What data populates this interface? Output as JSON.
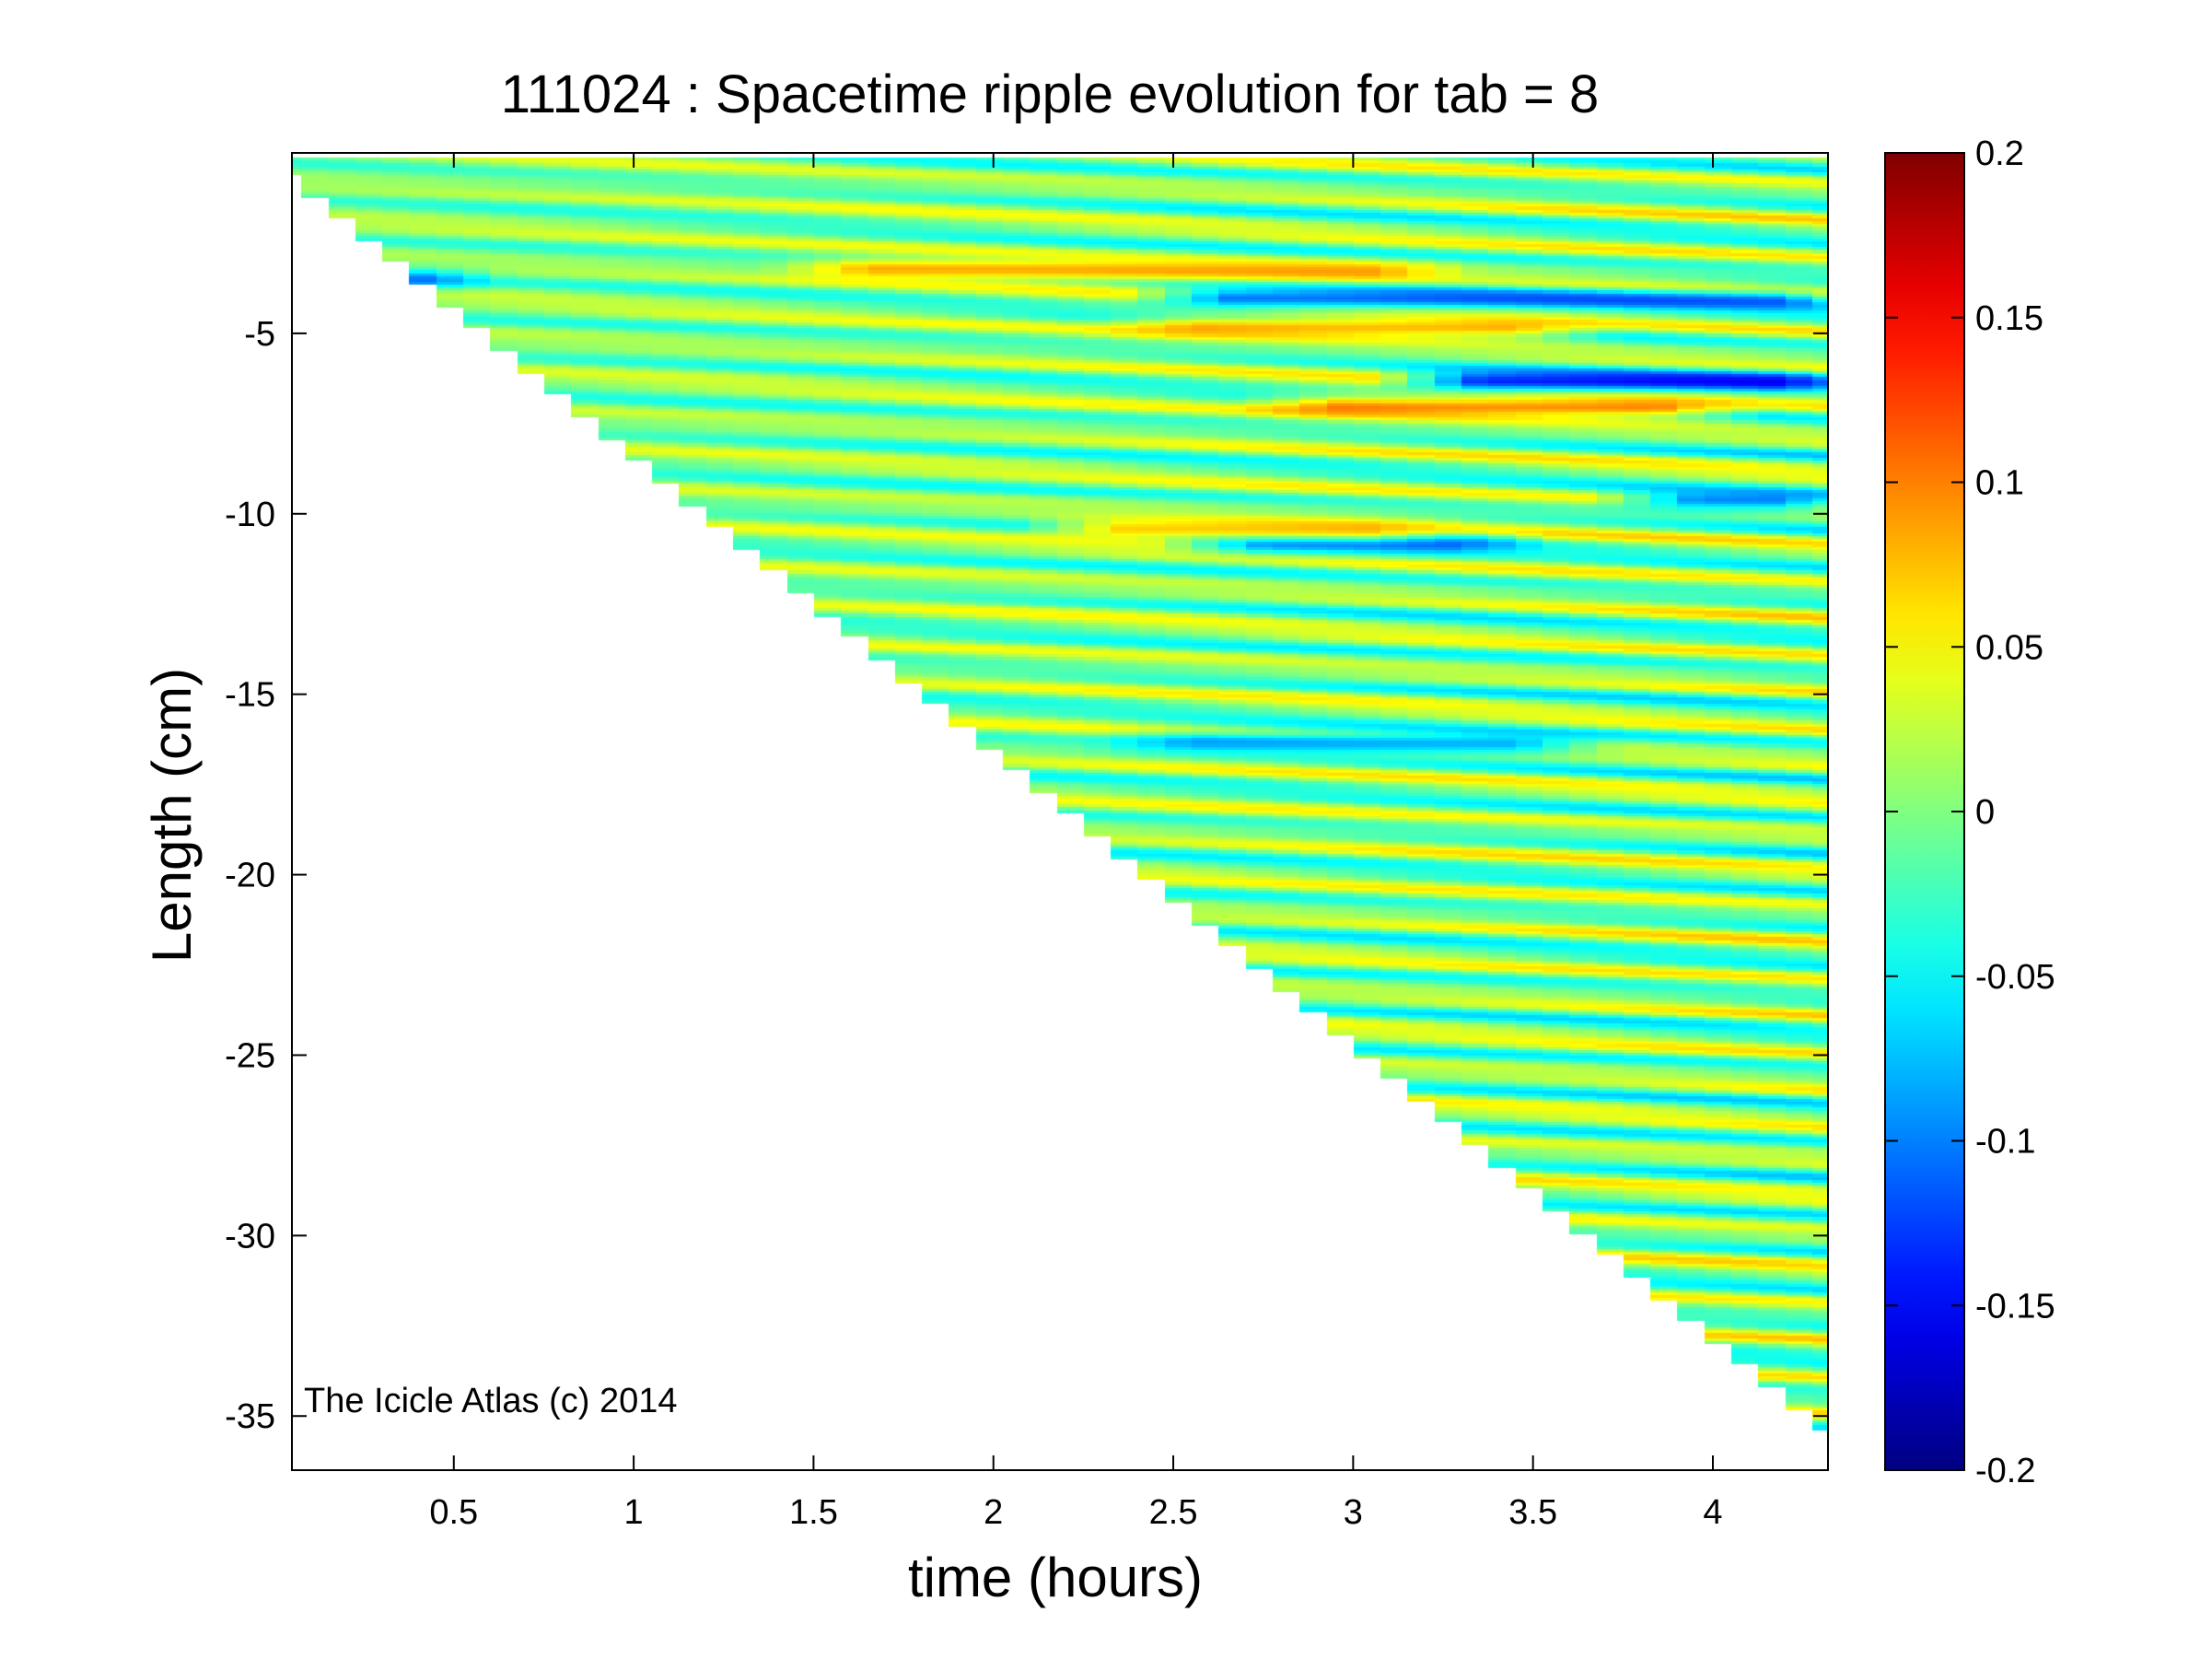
{
  "chart_data": {
    "type": "heatmap",
    "title": "111024 : Spacetime ripple evolution for tab = 8",
    "xlabel": "time (hours)",
    "ylabel": "Length (cm)",
    "xlim": [
      0.05,
      4.32
    ],
    "ylim": [
      -36.5,
      0.0
    ],
    "xticks": [
      0.5,
      1,
      1.5,
      2,
      2.5,
      3,
      3.5,
      4
    ],
    "xtick_labels": [
      "0.5",
      "1",
      "1.5",
      "2",
      "2.5",
      "3",
      "3.5",
      "4"
    ],
    "yticks": [
      -5,
      -10,
      -15,
      -20,
      -25,
      -30,
      -35
    ],
    "ytick_labels": [
      "-5",
      "-10",
      "-15",
      "-20",
      "-25",
      "-30",
      "-35"
    ],
    "colorbar": {
      "colormap": "jet",
      "clim": [
        -0.2,
        0.2
      ],
      "ticks": [
        0.2,
        0.15,
        0.1,
        0.05,
        0,
        -0.05,
        -0.1,
        -0.15,
        -0.2
      ],
      "tick_labels": [
        "0.2",
        "0.15",
        "0.1",
        "0.05",
        "0",
        "-0.05",
        "-0.1",
        "-0.15",
        "-0.2"
      ]
    },
    "data_region": {
      "description_boundary": "icicle tip length grows linearly with time",
      "tip_start": {
        "time": 0.05,
        "length": -1.0
      },
      "tip_end": {
        "time": 4.32,
        "length": -35.8
      }
    },
    "ripple_pattern": {
      "wavelength_cm": 1.0,
      "drift_cm_per_hour": 0.5,
      "typical_amplitude": 0.045,
      "strong_features": [
        {
          "length": -4.0,
          "time_from": 2.5,
          "time_to": 4.32,
          "value": -0.13
        },
        {
          "length": -3.2,
          "time_from": 1.5,
          "time_to": 3.2,
          "value": 0.1
        },
        {
          "length": -6.3,
          "time_from": 3.2,
          "time_to": 4.32,
          "value": -0.17
        },
        {
          "length": -7.0,
          "time_from": 2.8,
          "time_to": 4.0,
          "value": 0.12
        },
        {
          "length": -4.8,
          "time_from": 2.4,
          "time_to": 3.6,
          "value": 0.1
        },
        {
          "length": -10.8,
          "time_from": 2.6,
          "time_to": 3.4,
          "value": -0.13
        },
        {
          "length": -10.4,
          "time_from": 2.2,
          "time_to": 3.2,
          "value": 0.09
        },
        {
          "length": -16.3,
          "time_from": 2.4,
          "time_to": 3.6,
          "value": -0.1
        },
        {
          "length": -9.6,
          "time_from": 3.8,
          "time_to": 4.32,
          "value": -0.12
        },
        {
          "length": -3.5,
          "time_from": 0.3,
          "time_to": 0.5,
          "value": -0.14
        }
      ]
    },
    "annotation": "The Icicle Atlas (c) 2014"
  }
}
